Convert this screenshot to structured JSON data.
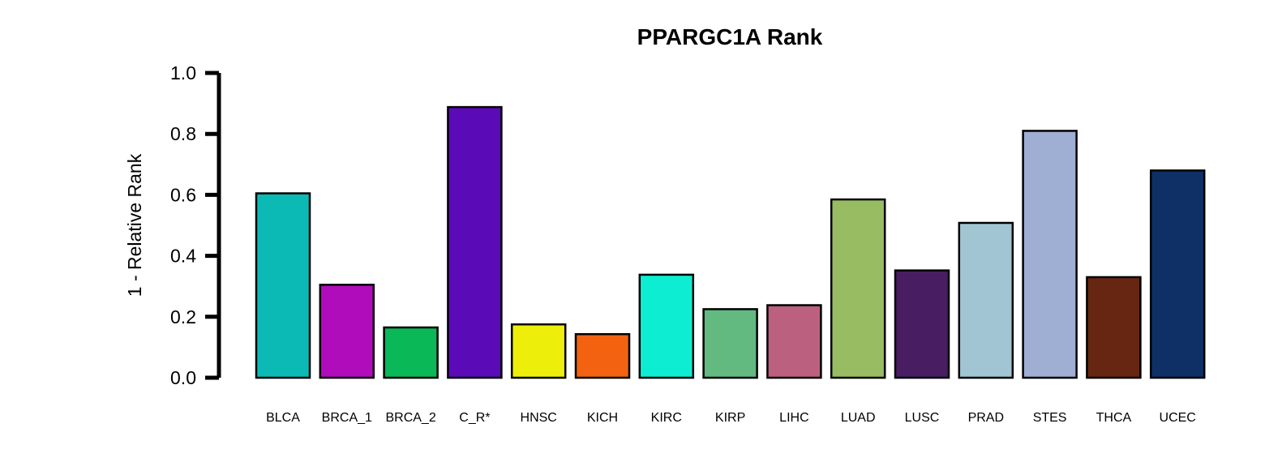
{
  "chart_data": {
    "type": "bar",
    "title": "PPARGC1A Rank",
    "xlabel": "",
    "ylabel": "1 - Relative Rank",
    "ylim": [
      0,
      1
    ],
    "yticks": [
      0.0,
      0.2,
      0.4,
      0.6,
      0.8,
      1.0
    ],
    "ytick_labels": [
      "0.0",
      "0.2",
      "0.4",
      "0.6",
      "0.8",
      "1.0"
    ],
    "grid": false,
    "legend": "none",
    "categories": [
      "BLCA",
      "BRCA_1",
      "BRCA_2",
      "C_R*",
      "HNSC",
      "KICH",
      "KIRC",
      "KIRP",
      "LIHC",
      "LUAD",
      "LUSC",
      "PRAD",
      "STES",
      "THCA",
      "UCEC"
    ],
    "values": [
      0.605,
      0.305,
      0.165,
      0.888,
      0.175,
      0.143,
      0.338,
      0.225,
      0.238,
      0.585,
      0.352,
      0.508,
      0.81,
      0.33,
      0.68
    ],
    "colors": [
      "#0BBAB5",
      "#B10CBC",
      "#0AB858",
      "#5B0AB8",
      "#EEEE0B",
      "#F26210",
      "#0DEDD2",
      "#62BA80",
      "#BC6080",
      "#97BC62",
      "#481D62",
      "#A1C5D3",
      "#9FAED3",
      "#672612",
      "#0F2F67"
    ]
  }
}
